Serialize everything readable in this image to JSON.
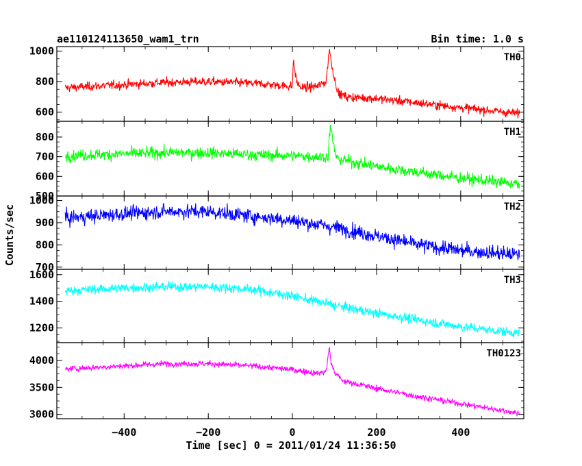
{
  "chart_data": {
    "type": "line",
    "title": "ae110124113650_wam1_trn",
    "bin_time_label": "Bin time: 1.0 s",
    "xlabel": "Time [sec] 0 = 2011/01/24 11:36:50",
    "ylabel": "Counts/sec",
    "xlim": [
      -560,
      550
    ],
    "xticks": [
      -400,
      -200,
      0,
      200,
      400
    ],
    "grid": false,
    "legend": "none",
    "series": [
      {
        "name": "TH0",
        "color": "#ff0000",
        "ylim": [
          540,
          1030
        ],
        "yticks": [
          600,
          800,
          1000
        ],
        "noise": 45,
        "x": [
          -540,
          -400,
          -300,
          -200,
          -100,
          0,
          2,
          10,
          20,
          60,
          80,
          88,
          92,
          100,
          110,
          130,
          200,
          300,
          400,
          540
        ],
        "values": [
          760,
          780,
          795,
          800,
          790,
          770,
          940,
          800,
          760,
          770,
          800,
          1020,
          930,
          820,
          720,
          700,
          690,
          660,
          630,
          590
        ]
      },
      {
        "name": "TH1",
        "color": "#00ff00",
        "ylim": [
          500,
          880
        ],
        "yticks": [
          500,
          600,
          700,
          800
        ],
        "noise": 45,
        "x": [
          -540,
          -400,
          -300,
          -200,
          -100,
          0,
          50,
          85,
          90,
          95,
          105,
          200,
          300,
          400,
          540
        ],
        "values": [
          705,
          715,
          720,
          720,
          710,
          705,
          700,
          700,
          860,
          790,
          690,
          650,
          620,
          590,
          560
        ],
        "unlabeled_tick_value": 900
      },
      {
        "name": "TH2",
        "color": "#0000ff",
        "ylim": [
          690,
          1020
        ],
        "yticks": [
          700,
          800,
          900,
          1000
        ],
        "noise": 50,
        "x": [
          -540,
          -400,
          -300,
          -200,
          -100,
          0,
          100,
          200,
          300,
          400,
          540
        ],
        "values": [
          920,
          940,
          950,
          950,
          930,
          910,
          880,
          840,
          800,
          775,
          755
        ]
      },
      {
        "name": "TH3",
        "color": "#00ffff",
        "ylim": [
          1090,
          1640
        ],
        "yticks": [
          1200,
          1400,
          1600
        ],
        "noise": 55,
        "x": [
          -540,
          -400,
          -300,
          -200,
          -100,
          0,
          100,
          200,
          300,
          400,
          540
        ],
        "values": [
          1480,
          1500,
          1510,
          1510,
          1490,
          1440,
          1370,
          1310,
          1260,
          1210,
          1160
        ]
      },
      {
        "name": "TH0123",
        "color": "#ff00ff",
        "ylim": [
          2920,
          4330
        ],
        "yticks": [
          3000,
          3500,
          4000
        ],
        "noise": 85,
        "x": [
          -540,
          -400,
          -300,
          -200,
          -100,
          0,
          60,
          80,
          88,
          92,
          100,
          120,
          200,
          300,
          400,
          540
        ],
        "values": [
          3840,
          3900,
          3940,
          3940,
          3900,
          3830,
          3760,
          3800,
          4250,
          3950,
          3780,
          3620,
          3480,
          3330,
          3200,
          3020
        ]
      }
    ]
  }
}
